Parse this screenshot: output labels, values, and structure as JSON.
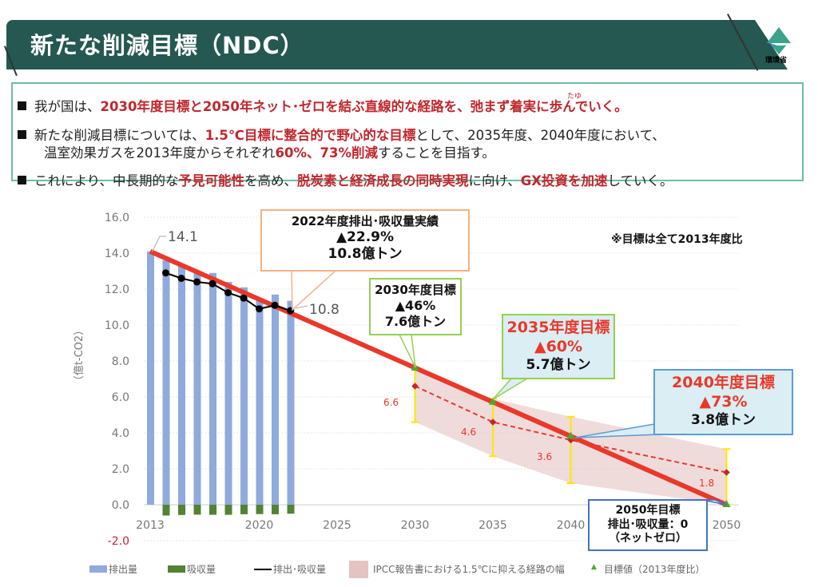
{
  "header": {
    "title": "新たな削減目標（NDC）",
    "logo_text": "環境省"
  },
  "bullets": [
    {
      "parts": [
        {
          "t": "我が国は、"
        },
        {
          "t": "2030年度目標と2050年ネット･ゼロを結ぶ直線的な経路を、",
          "red": true
        },
        {
          "t": "弛まず着実に歩んでいく。",
          "red": true
        }
      ],
      "ruby": "たゆ"
    },
    {
      "parts": [
        {
          "t": "新たな削減目標については、"
        },
        {
          "t": "1.5℃目標に整合的で野心的な目標",
          "red": true
        },
        {
          "t": "として、2035年度、2040年度において、"
        }
      ]
    },
    {
      "parts": [
        {
          "t": "温室効果ガスを2013年度からそれぞれ"
        },
        {
          "t": "60%、73%削減",
          "red": true
        },
        {
          "t": "することを目指す。"
        }
      ]
    },
    {
      "parts": [
        {
          "t": "これにより、中長期的な"
        },
        {
          "t": "予見可能性",
          "red": true
        },
        {
          "t": "を高め、"
        },
        {
          "t": "脱炭素と経済成長の同時実現",
          "red": true
        },
        {
          "t": "に向け、"
        },
        {
          "t": "GX投資を加速",
          "red": true
        },
        {
          "t": "していく。"
        }
      ]
    }
  ],
  "chart_data": {
    "type": "bar",
    "ylabel": "（億t-CO2）",
    "ylim": [
      -2,
      16
    ],
    "yticks": [
      "16.0",
      "14.0",
      "12.0",
      "10.0",
      "8.0",
      "6.0",
      "4.0",
      "2.0",
      "0.0",
      "-2.0"
    ],
    "xlim": [
      2013,
      2050
    ],
    "xticks": [
      "2013",
      "2020",
      "2025",
      "2030",
      "2035",
      "2040",
      "2050"
    ],
    "grid": true,
    "years": [
      2013,
      2014,
      2015,
      2016,
      2017,
      2018,
      2019,
      2020,
      2021,
      2022
    ],
    "series": [
      {
        "name": "排出量",
        "type": "bar",
        "color": "#8faadc",
        "values": [
          14.1,
          13.6,
          13.3,
          13.0,
          12.9,
          12.4,
          12.1,
          11.5,
          11.7,
          11.35
        ]
      },
      {
        "name": "吸収量",
        "type": "bar",
        "color": "#548235",
        "values": [
          0,
          -0.6,
          -0.57,
          -0.55,
          -0.56,
          -0.56,
          -0.53,
          -0.52,
          -0.53,
          -0.5
        ]
      },
      {
        "name": "排出･吸収量",
        "type": "line",
        "color": "#000000",
        "values": [
          null,
          12.9,
          12.6,
          12.4,
          12.3,
          11.8,
          11.5,
          10.9,
          11.1,
          10.8
        ]
      },
      {
        "name": "IPCC報告書における1.5℃に抑える経路の幅",
        "type": "band",
        "color": "#e6c3c3",
        "x": [
          2030,
          2035,
          2040,
          2050
        ],
        "upper": [
          7.6,
          5.9,
          4.9,
          3.1
        ],
        "lower": [
          4.6,
          2.7,
          1.2,
          0
        ],
        "median": [
          6.6,
          4.6,
          3.6,
          1.8
        ]
      },
      {
        "name": "目標値（2013年度比）",
        "type": "marker",
        "color": "#4ea72e",
        "x": [
          2030,
          2035,
          2040,
          2050
        ],
        "values": [
          7.6,
          5.7,
          3.8,
          0
        ]
      }
    ],
    "linear_path": {
      "color": "#e8392a",
      "x": [
        2013,
        2050
      ],
      "values": [
        14.1,
        0
      ]
    },
    "data_labels": {
      "start": "14.1",
      "end": "10.8",
      "medians": [
        "6.6",
        "4.6",
        "3.6",
        "1.8"
      ]
    },
    "note": "※目標は全て2013年度比",
    "callouts": [
      {
        "lines": [
          "2022年度排出･吸収量実績",
          "▲22.9%",
          "10.8億トン"
        ]
      },
      {
        "lines": [
          "2030年度目標",
          "▲46%",
          "7.6億トン"
        ]
      },
      {
        "lines": [
          "2035年度目標",
          "▲60%",
          "5.7億トン"
        ]
      },
      {
        "lines": [
          "2040年度目標",
          "▲73%",
          "3.8億トン"
        ]
      },
      {
        "lines": [
          "2050年目標",
          "排出･吸収量：0",
          "（ネットゼロ）"
        ]
      }
    ]
  }
}
